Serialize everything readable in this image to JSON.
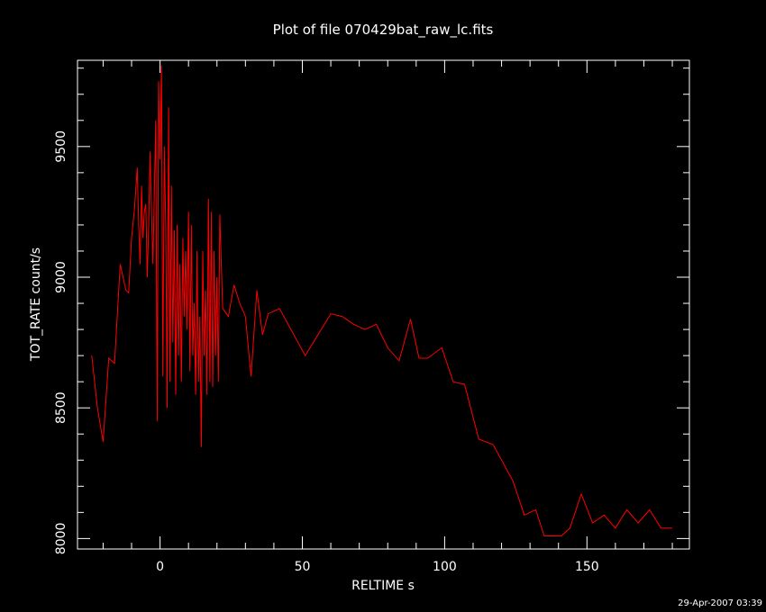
{
  "chart_data": {
    "type": "line",
    "title": "Plot of file 070429bat_raw_lc.fits",
    "xlabel": "RELTIME  s",
    "ylabel": "TOT_RATE  count/s",
    "xlim": [
      -29,
      186
    ],
    "ylim": [
      7960,
      9830
    ],
    "xticks": [
      0,
      50,
      100,
      150
    ],
    "xtick_labels": [
      "0",
      "50",
      "100",
      "150"
    ],
    "yticks": [
      8000,
      8500,
      9000,
      9500
    ],
    "ytick_labels": [
      "8000",
      "8500",
      "9000",
      "9500"
    ],
    "grid": false,
    "legend": "none",
    "series_color": "#ff0000",
    "background": "#000000",
    "series": [
      {
        "x": [
          -24.0,
          -22.0,
          -20.0,
          -18.0,
          -16.0,
          -14.0,
          -12.0,
          -11.0,
          -10.0,
          -9.0,
          -8.0,
          -7.5,
          -7.0,
          -6.5,
          -6.0,
          -5.5,
          -5.0,
          -4.5,
          -4.0,
          -3.5,
          -3.0,
          -2.5,
          -2.0,
          -1.5,
          -1.0,
          -0.5,
          0.0,
          0.5,
          1.0,
          1.5,
          2.0,
          2.5,
          3.0,
          3.5,
          4.0,
          4.5,
          5.0,
          5.5,
          6.0,
          6.5,
          7.0,
          7.5,
          8.0,
          8.5,
          9.0,
          9.5,
          10.0,
          10.5,
          11.0,
          11.5,
          12.0,
          12.5,
          13.0,
          13.5,
          14.0,
          14.5,
          15.0,
          15.5,
          16.0,
          16.5,
          17.0,
          17.5,
          18.0,
          18.5,
          19.0,
          19.5,
          20.0,
          20.5,
          21.0,
          22.0,
          24.0,
          26.0,
          28.0,
          30.0,
          32.0,
          34.0,
          36.0,
          38.0,
          42.0,
          46.0,
          51.0,
          60.0,
          64.0,
          68.0,
          72.0,
          76.0,
          80.0,
          84.0,
          88.0,
          91.0,
          94.0,
          99.0,
          103.0,
          107.0,
          112.0,
          117.0,
          120.0,
          124.0,
          128.0,
          132.0,
          135.0,
          141.0,
          144.0,
          148.0,
          152.0,
          156.0,
          160.0,
          164.0,
          168.0,
          172.0,
          176.0,
          180.0
        ],
        "values": [
          8700,
          8500,
          8370,
          8690,
          8670,
          9050,
          8950,
          8940,
          9150,
          9260,
          9420,
          9200,
          9050,
          9350,
          9150,
          9250,
          9280,
          9000,
          9200,
          9480,
          9250,
          9050,
          9330,
          9600,
          8450,
          9750,
          9450,
          9810,
          8620,
          9500,
          9200,
          8500,
          9650,
          8600,
          9350,
          8750,
          9180,
          8550,
          9200,
          8700,
          9050,
          8600,
          9150,
          8850,
          9100,
          8800,
          9250,
          8640,
          9200,
          8700,
          8900,
          8550,
          9100,
          8600,
          8850,
          8350,
          9100,
          8700,
          8950,
          8550,
          9300,
          8600,
          9250,
          8580,
          9100,
          8700,
          9000,
          8600,
          9240,
          8880,
          8850,
          8970,
          8900,
          8850,
          8620,
          8950,
          8780,
          8860,
          8880,
          8800,
          8700,
          8860,
          8850,
          8820,
          8800,
          8820,
          8730,
          8680,
          8840,
          8690,
          8690,
          8730,
          8600,
          8590,
          8380,
          8360,
          8300,
          8220,
          8090,
          8110,
          8010,
          8010,
          8040,
          8170,
          8060,
          8090,
          8040,
          8110,
          8060,
          8110,
          8040,
          8040
        ]
      }
    ],
    "timestamp": "29-Apr-2007 03:39"
  }
}
